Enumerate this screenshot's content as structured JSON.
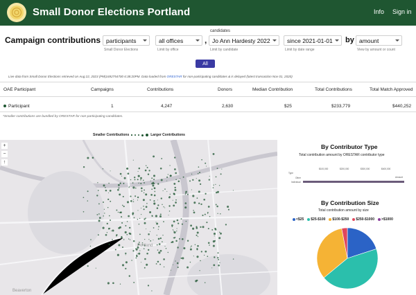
{
  "header": {
    "brand": "Small Donor Elections Portland",
    "nav": [
      "Info",
      "Sign in"
    ],
    "colors": {
      "bar": "#1f5631",
      "accent": "#3a3aa3"
    }
  },
  "filters": {
    "title": "Campaign contributions for",
    "participants": {
      "value": "participants",
      "hint": "Small Donor Elections"
    },
    "offices": {
      "value": "all offices",
      "hint": "Limit by office"
    },
    "comma": ",",
    "candidates": {
      "label": "candidates",
      "value": "Jo Ann Hardesty 2022",
      "hint": "Limit by candidate"
    },
    "date": {
      "value": "since 2021-01-01",
      "hint": "Limit by date range"
    },
    "by_label": "by",
    "amount": {
      "value": "amount",
      "hint": "View by amount or count"
    },
    "all_button": "All"
  },
  "live_note": {
    "prefix": "Live data from Small Donor Elections retrieved on Aug 22, 2023 (PM|1692754700 6:38:20PM. Data loaded from ",
    "link": "ORESTAR",
    "suffix": " for non-participating candidates & is delayed (latest transaction Nov 01, 2020)"
  },
  "table": {
    "headers": [
      "OAE Participant",
      "Campaigns",
      "Contributions",
      "Donors",
      "Median Contribution",
      "Total Contributions",
      "Total Match Approved"
    ],
    "row": [
      "Participant",
      "1",
      "4,247",
      "2,630",
      "$25",
      "$233,779",
      "$440,252"
    ],
    "note": "*Smaller contributions are bundled by ORESTAR for non-participating candidates."
  },
  "map": {
    "legend_left": "Smaller Contributions",
    "legend_right": "Larger Contributions",
    "controls": [
      "+",
      "−",
      "↑"
    ],
    "place_labels": [
      "Portland",
      "Beaverton"
    ]
  },
  "contributor_type": {
    "title": "By Contributor Type",
    "subtitle": "Total contribution amount by ORESTAR contributor type",
    "ticks": [
      "$100,000",
      "$200,000",
      "$300,000",
      "$400,000"
    ],
    "axis_label": "Amount",
    "type_label": "Type",
    "rows": [
      {
        "label": "Other",
        "value": 0
      },
      {
        "label": "Individual",
        "value": 233779
      }
    ]
  },
  "contribution_size": {
    "title": "By Contribution Size",
    "subtitle": "Total contribution amount by size",
    "legend": [
      {
        "label": "<$25",
        "color": "#2b63c6"
      },
      {
        "label": "$25-$100",
        "color": "#2bbfac"
      },
      {
        "label": "$100-$250",
        "color": "#f5b335"
      },
      {
        "label": "$250-$1000",
        "color": "#e0475c"
      },
      {
        "label": ">$1000",
        "color": "#8a3e9c"
      }
    ],
    "chart_data": {
      "type": "pie",
      "categories": [
        "<$25",
        "$25-$100",
        "$100-$250",
        "$250-$1000",
        ">$1000"
      ],
      "values": [
        20,
        44,
        33,
        3,
        0
      ]
    }
  }
}
